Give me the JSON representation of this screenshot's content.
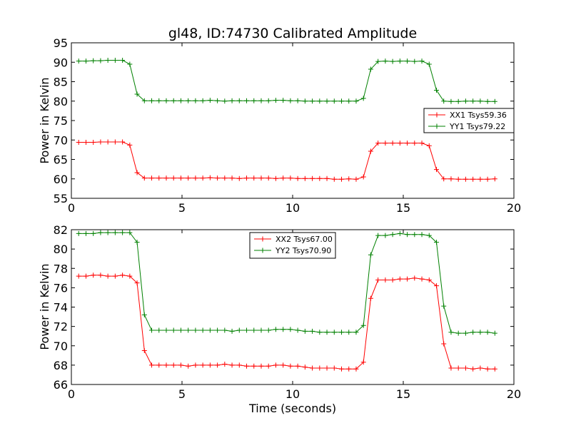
{
  "title": "gl48, ID:74730 Calibrated Amplitude",
  "xlabel": "Time (seconds)",
  "colors": {
    "red": "#ff0000",
    "green": "#008000"
  },
  "chart_data": [
    {
      "type": "line",
      "title": "gl48, ID:74730 Calibrated Amplitude",
      "xlabel": "",
      "ylabel": "Power in Kelvin",
      "xlim": [
        0,
        20
      ],
      "ylim": [
        55,
        95
      ],
      "xticks": [
        0,
        5,
        10,
        15,
        20
      ],
      "yticks": [
        55,
        60,
        65,
        70,
        75,
        80,
        85,
        90,
        95
      ],
      "grid": false,
      "legend_position": "center-right",
      "x": [
        0.33,
        0.66,
        0.99,
        1.32,
        1.65,
        1.98,
        2.31,
        2.64,
        2.97,
        3.3,
        3.63,
        3.96,
        4.29,
        4.62,
        4.95,
        5.28,
        5.61,
        5.94,
        6.27,
        6.6,
        6.93,
        7.26,
        7.59,
        7.92,
        8.25,
        8.58,
        8.91,
        9.24,
        9.57,
        9.9,
        10.23,
        10.56,
        10.89,
        11.22,
        11.55,
        11.88,
        12.21,
        12.54,
        12.87,
        13.2,
        13.53,
        13.86,
        14.19,
        14.52,
        14.85,
        15.18,
        15.51,
        15.84,
        16.17,
        16.5,
        16.83,
        17.16,
        17.49,
        17.82,
        18.15,
        18.48,
        18.81,
        19.14
      ],
      "series": [
        {
          "name": "XX1 Tsys59.36",
          "color": "#ff0000",
          "values": [
            69.4,
            69.4,
            69.4,
            69.5,
            69.5,
            69.5,
            69.5,
            68.7,
            61.6,
            60.2,
            60.2,
            60.2,
            60.2,
            60.2,
            60.2,
            60.2,
            60.2,
            60.2,
            60.3,
            60.2,
            60.2,
            60.2,
            60.1,
            60.2,
            60.2,
            60.2,
            60.2,
            60.1,
            60.2,
            60.2,
            60.1,
            60.1,
            60.1,
            60.1,
            60.1,
            59.9,
            59.9,
            60.0,
            59.9,
            60.5,
            67.1,
            69.2,
            69.2,
            69.2,
            69.2,
            69.2,
            69.2,
            69.2,
            68.5,
            62.4,
            60.0,
            60.0,
            59.9,
            59.9,
            59.9,
            59.9,
            59.9,
            60.0
          ]
        },
        {
          "name": "YY1 Tsys79.22",
          "color": "#008000",
          "values": [
            90.3,
            90.3,
            90.4,
            90.4,
            90.5,
            90.5,
            90.5,
            89.5,
            81.8,
            80.1,
            80.1,
            80.1,
            80.1,
            80.1,
            80.1,
            80.1,
            80.1,
            80.1,
            80.2,
            80.1,
            80.0,
            80.1,
            80.1,
            80.1,
            80.1,
            80.1,
            80.1,
            80.2,
            80.2,
            80.1,
            80.1,
            80.0,
            80.0,
            80.0,
            80.0,
            80.0,
            80.0,
            80.0,
            80.0,
            80.7,
            88.2,
            90.2,
            90.3,
            90.2,
            90.3,
            90.3,
            90.2,
            90.3,
            89.5,
            82.8,
            80.0,
            79.9,
            79.9,
            80.0,
            80.0,
            80.0,
            79.9,
            79.9
          ]
        }
      ]
    },
    {
      "type": "line",
      "title": "",
      "xlabel": "Time (seconds)",
      "ylabel": "Power in Kelvin",
      "xlim": [
        0,
        20
      ],
      "ylim": [
        66,
        82
      ],
      "xticks": [
        0,
        5,
        10,
        15,
        20
      ],
      "yticks": [
        66,
        68,
        70,
        72,
        74,
        76,
        78,
        80,
        82
      ],
      "grid": false,
      "legend_position": "top-center",
      "x": [
        0.33,
        0.66,
        0.99,
        1.32,
        1.65,
        1.98,
        2.31,
        2.64,
        2.97,
        3.3,
        3.63,
        3.96,
        4.29,
        4.62,
        4.95,
        5.28,
        5.61,
        5.94,
        6.27,
        6.6,
        6.93,
        7.26,
        7.59,
        7.92,
        8.25,
        8.58,
        8.91,
        9.24,
        9.57,
        9.9,
        10.23,
        10.56,
        10.89,
        11.22,
        11.55,
        11.88,
        12.21,
        12.54,
        12.87,
        13.2,
        13.53,
        13.86,
        14.19,
        14.52,
        14.85,
        15.18,
        15.51,
        15.84,
        16.17,
        16.5,
        16.83,
        17.16,
        17.49,
        17.82,
        18.15,
        18.48,
        18.81,
        19.14
      ],
      "series": [
        {
          "name": "XX2 Tsys67.00",
          "color": "#ff0000",
          "values": [
            77.2,
            77.2,
            77.3,
            77.3,
            77.2,
            77.2,
            77.3,
            77.2,
            76.5,
            69.5,
            68.0,
            68.0,
            68.0,
            68.0,
            68.0,
            67.9,
            68.0,
            68.0,
            68.0,
            68.0,
            68.1,
            68.0,
            68.0,
            67.9,
            67.9,
            67.9,
            67.9,
            68.0,
            68.0,
            67.9,
            67.9,
            67.8,
            67.7,
            67.7,
            67.7,
            67.7,
            67.6,
            67.6,
            67.6,
            68.3,
            74.9,
            76.8,
            76.8,
            76.8,
            76.9,
            76.9,
            77.0,
            76.9,
            76.8,
            76.2,
            70.2,
            67.7,
            67.7,
            67.7,
            67.6,
            67.7,
            67.6,
            67.6
          ]
        },
        {
          "name": "YY2 Tsys70.90",
          "color": "#008000",
          "values": [
            81.6,
            81.6,
            81.6,
            81.7,
            81.7,
            81.7,
            81.7,
            81.7,
            80.7,
            73.2,
            71.6,
            71.6,
            71.6,
            71.6,
            71.6,
            71.6,
            71.6,
            71.6,
            71.6,
            71.6,
            71.6,
            71.5,
            71.6,
            71.6,
            71.6,
            71.6,
            71.6,
            71.7,
            71.7,
            71.7,
            71.6,
            71.5,
            71.5,
            71.4,
            71.4,
            71.4,
            71.4,
            71.4,
            71.4,
            72.1,
            79.4,
            81.4,
            81.4,
            81.5,
            81.6,
            81.5,
            81.5,
            81.5,
            81.4,
            80.7,
            74.1,
            71.4,
            71.3,
            71.3,
            71.4,
            71.4,
            71.4,
            71.3
          ]
        }
      ]
    }
  ]
}
